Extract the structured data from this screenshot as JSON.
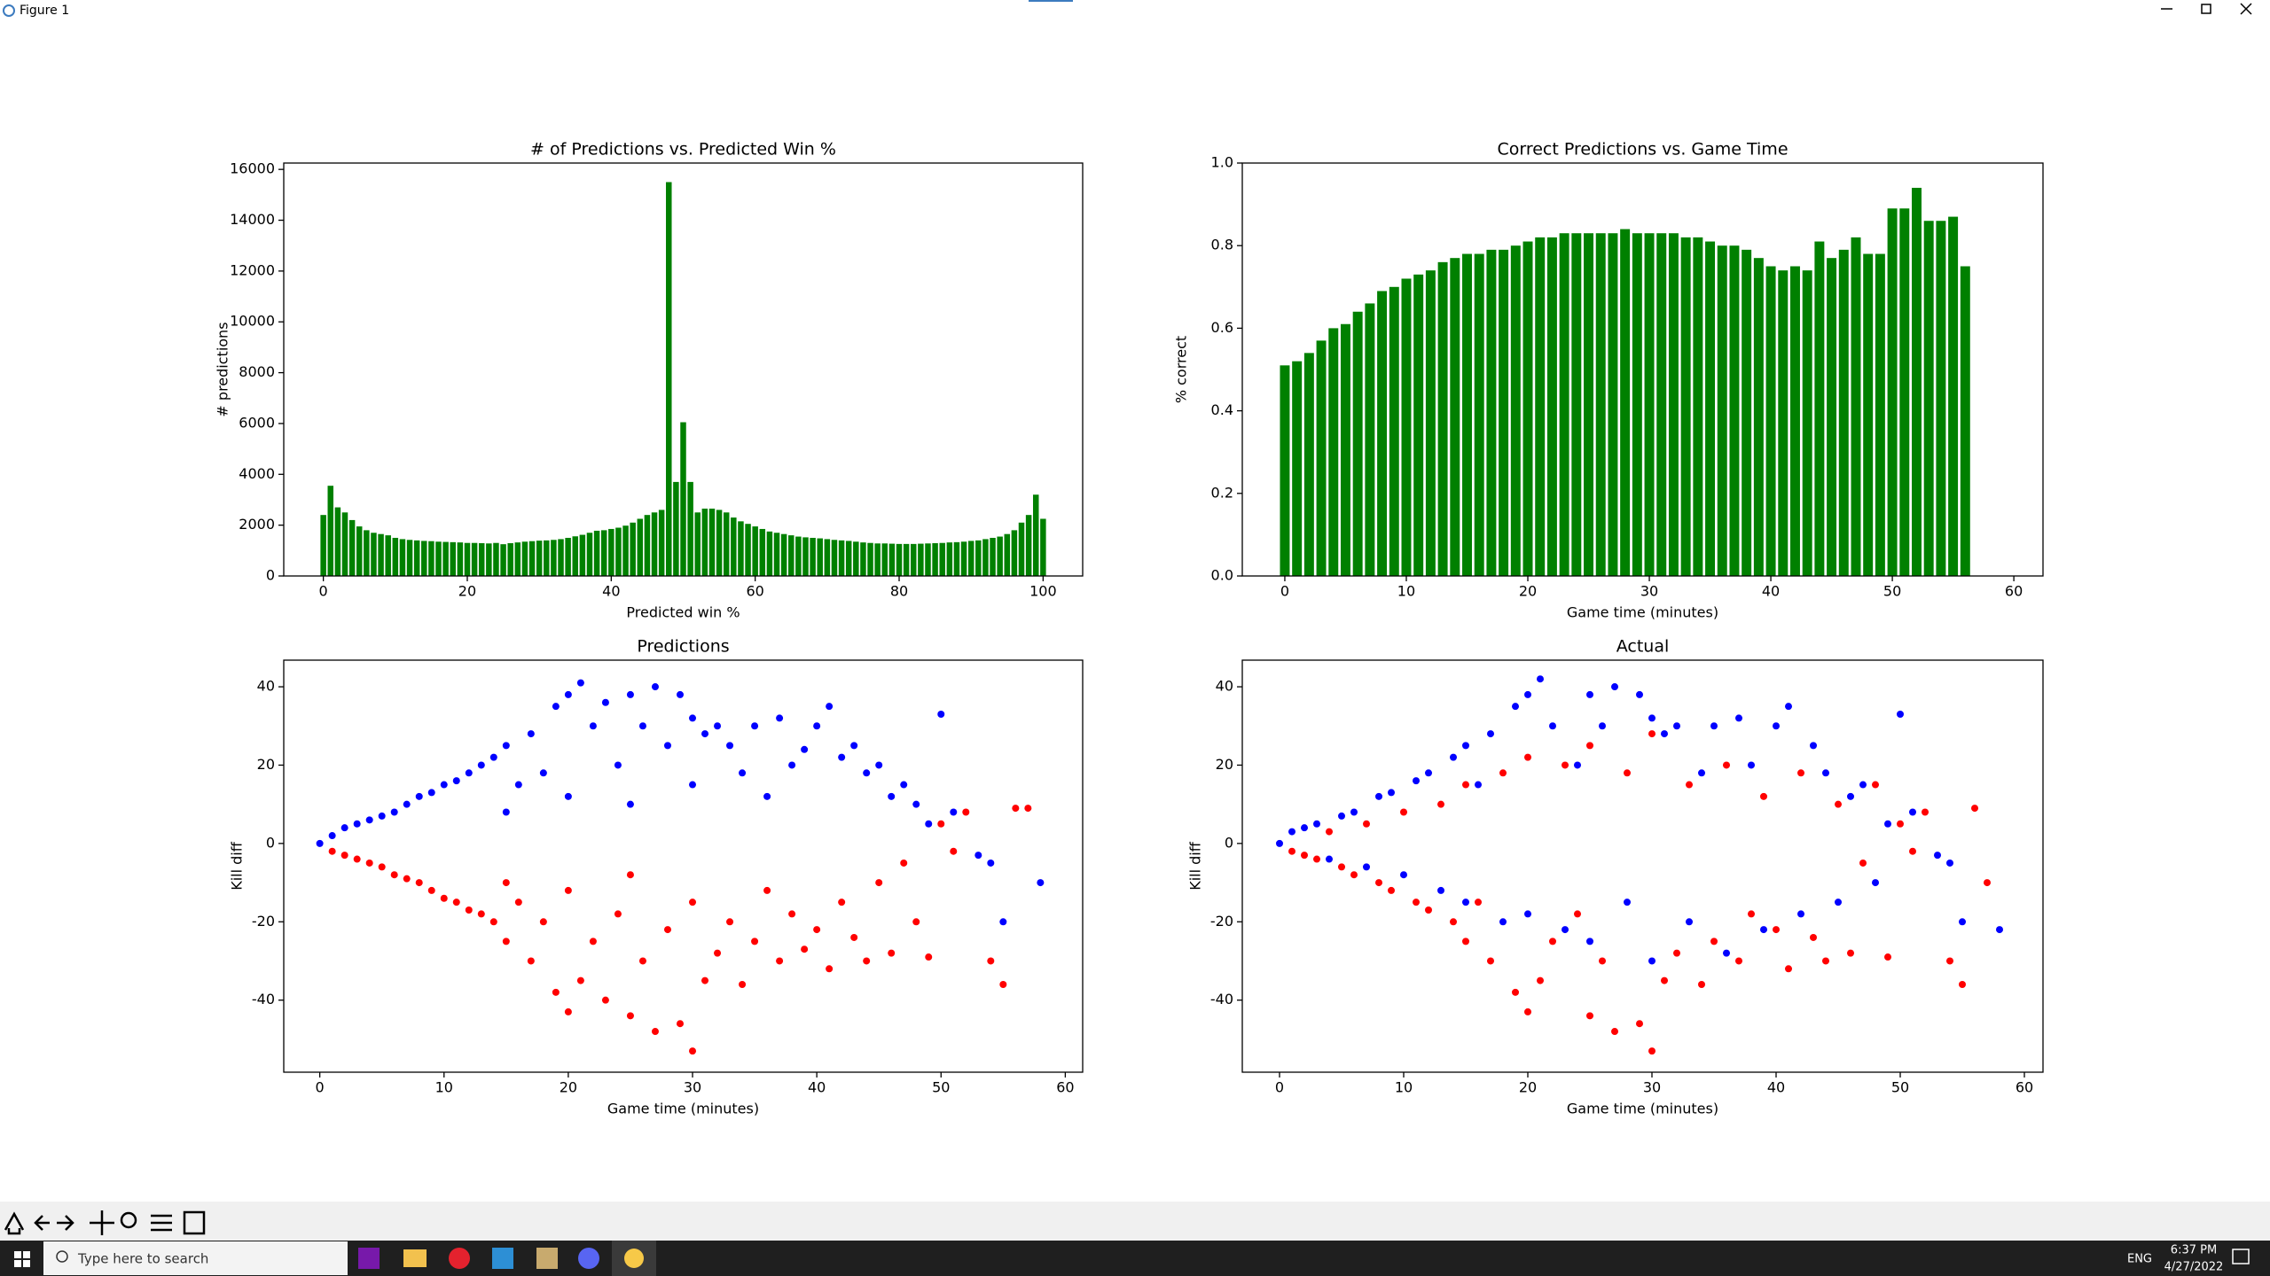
{
  "window": {
    "title": "Figure 1"
  },
  "charts": [
    {
      "type": "bar",
      "title": "# of Predictions vs. Predicted Win %",
      "xlabel": "Predicted win %",
      "ylabel": "# predictions",
      "color": "#008000",
      "x": [
        0,
        1,
        2,
        3,
        4,
        5,
        6,
        7,
        8,
        9,
        10,
        11,
        12,
        13,
        14,
        15,
        16,
        17,
        18,
        19,
        20,
        21,
        22,
        23,
        24,
        25,
        26,
        27,
        28,
        29,
        30,
        31,
        32,
        33,
        34,
        35,
        36,
        37,
        38,
        39,
        40,
        41,
        42,
        43,
        44,
        45,
        46,
        47,
        48,
        49,
        50,
        51,
        52,
        53,
        54,
        55,
        56,
        57,
        58,
        59,
        60,
        61,
        62,
        63,
        64,
        65,
        66,
        67,
        68,
        69,
        70,
        71,
        72,
        73,
        74,
        75,
        76,
        77,
        78,
        79,
        80,
        81,
        82,
        83,
        84,
        85,
        86,
        87,
        88,
        89,
        90,
        91,
        92,
        93,
        94,
        95,
        96,
        97,
        98,
        99,
        100
      ],
      "values": [
        2400,
        3550,
        2700,
        2500,
        2200,
        1950,
        1800,
        1700,
        1650,
        1600,
        1500,
        1450,
        1420,
        1400,
        1380,
        1370,
        1350,
        1340,
        1330,
        1320,
        1300,
        1300,
        1290,
        1280,
        1300,
        1250,
        1290,
        1320,
        1350,
        1370,
        1390,
        1400,
        1420,
        1450,
        1500,
        1560,
        1620,
        1700,
        1780,
        1800,
        1850,
        1900,
        1980,
        2100,
        2250,
        2400,
        2500,
        2600,
        15500,
        3700,
        6050,
        3700,
        2500,
        2650,
        2650,
        2600,
        2500,
        2300,
        2150,
        2050,
        1950,
        1850,
        1750,
        1700,
        1650,
        1600,
        1550,
        1520,
        1500,
        1480,
        1450,
        1420,
        1400,
        1380,
        1350,
        1320,
        1300,
        1280,
        1280,
        1270,
        1260,
        1260,
        1260,
        1270,
        1280,
        1290,
        1300,
        1320,
        1330,
        1350,
        1380,
        1400,
        1450,
        1500,
        1550,
        1650,
        1800,
        2100,
        2400,
        3200,
        2250
      ],
      "xlim": [
        -5.5,
        105.5
      ],
      "xticks": [
        0,
        20,
        40,
        60,
        80,
        100
      ],
      "ylim": [
        0,
        16250
      ],
      "yticks": [
        0,
        2000,
        4000,
        6000,
        8000,
        10000,
        12000,
        14000,
        16000
      ]
    },
    {
      "type": "bar",
      "title": "Correct Predictions vs. Game Time",
      "xlabel": "Game time (minutes)",
      "ylabel": "% correct",
      "color": "#008000",
      "x": [
        0,
        1,
        2,
        3,
        4,
        5,
        6,
        7,
        8,
        9,
        10,
        11,
        12,
        13,
        14,
        15,
        16,
        17,
        18,
        19,
        20,
        21,
        22,
        23,
        24,
        25,
        26,
        27,
        28,
        29,
        30,
        31,
        32,
        33,
        34,
        35,
        36,
        37,
        38,
        39,
        40,
        41,
        42,
        43,
        44,
        45,
        46,
        47,
        48,
        49,
        50,
        51,
        52,
        53,
        54,
        55,
        56
      ],
      "values": [
        0.51,
        0.52,
        0.54,
        0.57,
        0.6,
        0.61,
        0.64,
        0.66,
        0.69,
        0.7,
        0.72,
        0.73,
        0.74,
        0.76,
        0.77,
        0.78,
        0.78,
        0.79,
        0.79,
        0.8,
        0.81,
        0.82,
        0.82,
        0.83,
        0.83,
        0.83,
        0.83,
        0.83,
        0.84,
        0.83,
        0.83,
        0.83,
        0.83,
        0.82,
        0.82,
        0.81,
        0.8,
        0.8,
        0.79,
        0.77,
        0.75,
        0.74,
        0.75,
        0.74,
        0.81,
        0.77,
        0.79,
        0.82,
        0.78,
        0.78,
        0.89,
        0.89,
        0.94,
        0.86,
        0.86,
        0.87,
        0.75
      ],
      "xlim": [
        -3.5,
        62.4
      ],
      "xticks": [
        0,
        10,
        20,
        30,
        40,
        50,
        60
      ],
      "ylim": [
        0,
        1
      ],
      "yticks": [
        {
          "value": 0,
          "label": "0.0"
        },
        0.2,
        0.4,
        0.6,
        0.8,
        {
          "value": 1,
          "label": "1.0"
        }
      ]
    },
    {
      "type": "scatter",
      "title": "Predictions",
      "xlabel": "Game time (minutes)",
      "ylabel": "Kill diff",
      "xlim": [
        -2.9,
        61.4
      ],
      "xticks": [
        0,
        10,
        20,
        30,
        40,
        50,
        60
      ],
      "ylim": [
        -58.4,
        46.8
      ],
      "yticks": [
        -40,
        -20,
        0,
        20,
        40
      ],
      "series": [
        {
          "color": "#0000ff",
          "x": [
            0,
            1,
            2,
            3,
            4,
            5,
            6,
            7,
            8,
            9,
            10,
            11,
            12,
            13,
            14,
            15,
            15,
            16,
            17,
            18,
            19,
            20,
            20,
            21,
            22,
            23,
            24,
            25,
            25,
            26,
            27,
            28,
            29,
            30,
            30,
            31,
            32,
            33,
            34,
            35,
            36,
            37,
            38,
            39,
            40,
            41,
            42,
            43,
            44,
            45,
            46,
            47,
            48,
            49,
            50,
            51,
            53,
            54,
            55,
            58
          ],
          "values": [
            0,
            2,
            4,
            5,
            6,
            7,
            8,
            10,
            12,
            13,
            15,
            16,
            18,
            20,
            22,
            25,
            8,
            15,
            28,
            18,
            35,
            38,
            12,
            41,
            30,
            36,
            20,
            38,
            10,
            30,
            40,
            25,
            38,
            32,
            15,
            28,
            30,
            25,
            18,
            30,
            12,
            32,
            20,
            24,
            30,
            35,
            22,
            25,
            18,
            20,
            12,
            15,
            10,
            5,
            33,
            8,
            -3,
            -5,
            -20,
            -10
          ]
        },
        {
          "color": "#ff0000",
          "x": [
            1,
            2,
            3,
            4,
            5,
            6,
            7,
            8,
            9,
            10,
            11,
            12,
            13,
            14,
            15,
            15,
            16,
            17,
            18,
            19,
            20,
            20,
            21,
            22,
            23,
            24,
            25,
            25,
            26,
            27,
            28,
            29,
            30,
            30,
            31,
            32,
            33,
            34,
            35,
            36,
            37,
            38,
            39,
            40,
            41,
            42,
            43,
            44,
            45,
            46,
            47,
            48,
            49,
            50,
            51,
            52,
            54,
            55,
            56,
            57
          ],
          "values": [
            -2,
            -3,
            -4,
            -5,
            -6,
            -8,
            -9,
            -10,
            -12,
            -14,
            -15,
            -17,
            -18,
            -20,
            -25,
            -10,
            -15,
            -30,
            -20,
            -38,
            -43,
            -12,
            -35,
            -25,
            -40,
            -18,
            -44,
            -8,
            -30,
            -48,
            -22,
            -46,
            -53,
            -15,
            -35,
            -28,
            -20,
            -36,
            -25,
            -12,
            -30,
            -18,
            -27,
            -22,
            -32,
            -15,
            -24,
            -30,
            -10,
            -28,
            -5,
            -20,
            -29,
            5,
            -2,
            8,
            -30,
            -36,
            9,
            9
          ]
        }
      ]
    },
    {
      "type": "scatter",
      "title": "Actual",
      "xlabel": "Game time (minutes)",
      "ylabel": "Kill diff",
      "xlim": [
        -3.0,
        61.5
      ],
      "xticks": [
        0,
        10,
        20,
        30,
        40,
        50,
        60
      ],
      "ylim": [
        -58.4,
        46.8
      ],
      "yticks": [
        -40,
        -20,
        0,
        20,
        40
      ],
      "series": [
        {
          "color": "#0000ff",
          "x": [
            0,
            1,
            2,
            3,
            4,
            5,
            6,
            7,
            8,
            9,
            10,
            11,
            12,
            13,
            14,
            15,
            15,
            16,
            17,
            18,
            19,
            20,
            20,
            21,
            22,
            23,
            24,
            25,
            25,
            26,
            27,
            28,
            29,
            30,
            30,
            31,
            32,
            33,
            34,
            35,
            36,
            37,
            38,
            39,
            40,
            41,
            42,
            43,
            44,
            45,
            46,
            47,
            48,
            49,
            50,
            51,
            53,
            54,
            55,
            58
          ],
          "values": [
            0,
            3,
            4,
            5,
            -4,
            7,
            8,
            -6,
            12,
            13,
            -8,
            16,
            18,
            -12,
            22,
            25,
            -15,
            15,
            28,
            -20,
            35,
            38,
            -18,
            42,
            30,
            -22,
            20,
            38,
            -25,
            30,
            40,
            -15,
            38,
            32,
            -30,
            28,
            30,
            -20,
            18,
            30,
            -28,
            32,
            20,
            -22,
            30,
            35,
            -18,
            25,
            18,
            -15,
            12,
            15,
            -10,
            5,
            33,
            8,
            -3,
            -5,
            -20,
            -22
          ]
        },
        {
          "color": "#ff0000",
          "x": [
            1,
            2,
            3,
            4,
            5,
            6,
            7,
            8,
            9,
            10,
            11,
            12,
            13,
            14,
            15,
            15,
            16,
            17,
            18,
            19,
            20,
            20,
            21,
            22,
            23,
            24,
            25,
            25,
            26,
            27,
            28,
            29,
            30,
            30,
            31,
            32,
            33,
            34,
            35,
            36,
            37,
            38,
            39,
            40,
            41,
            42,
            43,
            44,
            45,
            46,
            47,
            48,
            49,
            50,
            51,
            52,
            54,
            55,
            56,
            57
          ],
          "values": [
            -2,
            -3,
            -4,
            3,
            -6,
            -8,
            5,
            -10,
            -12,
            8,
            -15,
            -17,
            10,
            -20,
            -25,
            15,
            -15,
            -30,
            18,
            -38,
            -43,
            22,
            -35,
            -25,
            20,
            -18,
            -44,
            25,
            -30,
            -48,
            18,
            -46,
            -53,
            28,
            -35,
            -28,
            15,
            -36,
            -25,
            20,
            -30,
            -18,
            12,
            -22,
            -32,
            18,
            -24,
            -30,
            10,
            -28,
            -5,
            15,
            -29,
            5,
            -2,
            8,
            -30,
            -36,
            9,
            -10
          ]
        }
      ]
    }
  ],
  "taskbar": {
    "search": "Type here to search",
    "language": "ENG",
    "time": "6:37 PM",
    "date": "4/27/2022"
  }
}
